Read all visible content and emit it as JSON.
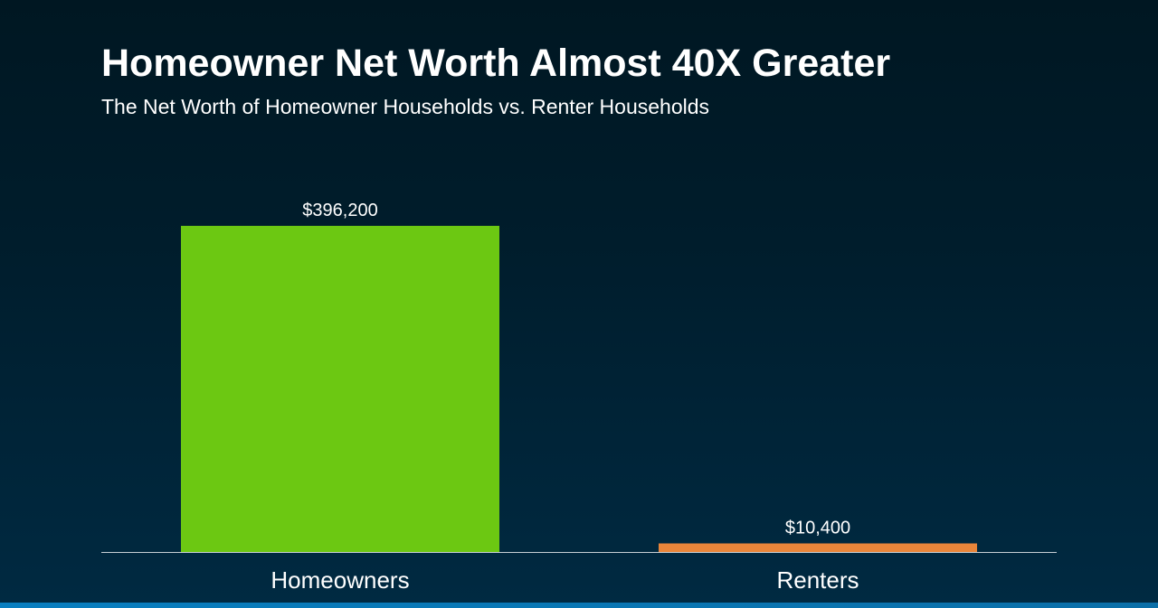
{
  "header": {
    "title": "Homeowner Net Worth Almost 40X Greater",
    "subtitle": "The Net Worth of Homeowner Households vs. Renter Households"
  },
  "chart_data": {
    "type": "bar",
    "title": "Homeowner Net Worth Almost 40X Greater",
    "subtitle": "The Net Worth of Homeowner Households vs. Renter Households",
    "categories": [
      "Homeowners",
      "Renters"
    ],
    "values": [
      396200,
      10400
    ],
    "value_labels": [
      "$396,200",
      "$10,400"
    ],
    "colors": [
      "#6cc812",
      "#e8853a"
    ],
    "xlabel": "",
    "ylabel": "",
    "ylim": [
      0,
      396200
    ],
    "grid": false,
    "legend": "none"
  },
  "colors": {
    "background_top": "#001722",
    "background_bottom": "#002a42",
    "axis_line": "#c8d0d6",
    "text": "#ffffff"
  }
}
